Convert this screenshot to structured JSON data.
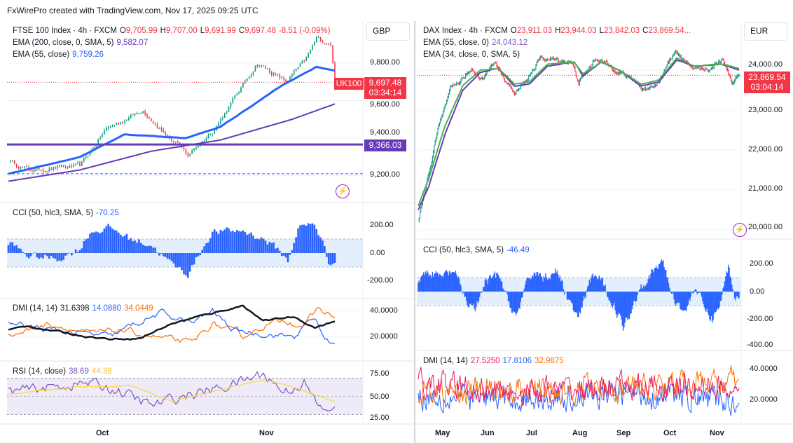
{
  "header": {
    "caption": "FxWirePro created with TradingView.com, Nov 17, 2025 09:25 UTC"
  },
  "colors": {
    "up": "#089981",
    "down": "#f23645",
    "ema_blue": "#2962ff",
    "ema_purple": "#673ab7",
    "ema_green": "#4caf50",
    "cci": "#2962ff",
    "adx": "#131722",
    "plus_di": "#2962ff",
    "minus_di": "#ff6d00",
    "dmi_red": "#e91e63",
    "rsi": "#7e57c2",
    "rsi_ma": "#fdd835"
  },
  "left": {
    "symbol": "FTSE 100 Index · 4h · FXCM",
    "o_label": "O",
    "o": "9,705.99",
    "h_label": "H",
    "h": "9,707.00",
    "l_label": "L",
    "l": "9,691.99",
    "c_label": "C",
    "c": "9,697.48",
    "change": "-8.51 (-0.09%)",
    "currency": "GBP",
    "ema1_label": "EMA (200, close, 0, SMA, 5)",
    "ema1_value": "9,582.07",
    "ema2_label": "EMA (55, close)",
    "ema2_value": "9,759.26",
    "symbol_tag": "UK100",
    "last_price": "9,697.48",
    "countdown": "03:34:14",
    "hline_price": "9,366.03",
    "price_ticks": [
      "9,800.00",
      "9,600.00",
      "9,400.00",
      "9,200.00"
    ],
    "cci_label": "CCI (50, hlc3, SMA, 5)",
    "cci_value": "-70.25",
    "cci_ticks": [
      "200.00",
      "0.00",
      "-200.00"
    ],
    "dmi_label": "DMI (14, 14)",
    "dmi_adx": "31.6398",
    "dmi_plus": "14.0880",
    "dmi_minus": "34.0449",
    "dmi_ticks": [
      "40.0000",
      "20.0000"
    ],
    "rsi_label": "RSI (14, close)",
    "rsi_value": "38.69",
    "rsi_ma": "44.38",
    "rsi_ticks": [
      "75.00",
      "50.00",
      "25.00"
    ],
    "time_ticks": [
      "Oct",
      "Nov"
    ]
  },
  "right": {
    "symbol": "DAX Index · 4h · FXCM",
    "o_label": "O",
    "o": "23,911.03",
    "h_label": "H",
    "h": "23,944.03",
    "l_label": "L",
    "l": "23,842.03",
    "c_label": "C",
    "c": "23,869.54...",
    "currency": "EUR",
    "ema1_label": "EMA (55, close, 0)",
    "ema1_value": "24,043.12",
    "ema2_label": "EMA (34, close, 0, SMA, 5)",
    "last_price": "23,869.54",
    "countdown": "03:04:14",
    "price_ticks": [
      "24,000.00",
      "23,000.00",
      "22,000.00",
      "21,000.00",
      "20,000.00"
    ],
    "cci_label": "CCI (50, hlc3, SMA, 5)",
    "cci_value": "-46.49",
    "cci_ticks": [
      "200.00",
      "0.00",
      "-200.00",
      "-400.00"
    ],
    "dmi_label": "DMI (14, 14)",
    "dmi_a": "27.5250",
    "dmi_b": "17.8106",
    "dmi_c": "32.9875",
    "dmi_ticks": [
      "40.0000",
      "20.0000"
    ],
    "time_ticks": [
      "May",
      "Jun",
      "Jul",
      "Aug",
      "Sep",
      "Oct",
      "Nov"
    ]
  },
  "chart_data": [
    {
      "type": "candlestick",
      "title": "FTSE 100 Index · 4h · FXCM",
      "bars": 160,
      "ylim": [
        9130,
        10000
      ],
      "close_keypoints": [
        [
          0,
          9280
        ],
        [
          10,
          9230
        ],
        [
          35,
          9250
        ],
        [
          48,
          9450
        ],
        [
          66,
          9550
        ],
        [
          77,
          9420
        ],
        [
          88,
          9310
        ],
        [
          101,
          9450
        ],
        [
          113,
          9650
        ],
        [
          122,
          9800
        ],
        [
          136,
          9700
        ],
        [
          146,
          9820
        ],
        [
          151,
          9930
        ],
        [
          158,
          9900
        ],
        [
          160,
          9697.48
        ]
      ],
      "ema55_keypoints": [
        [
          0,
          9210
        ],
        [
          35,
          9300
        ],
        [
          57,
          9420
        ],
        [
          87,
          9400
        ],
        [
          104,
          9460
        ],
        [
          134,
          9680
        ],
        [
          151,
          9780
        ],
        [
          160,
          9759.26
        ]
      ],
      "ema200_keypoints": [
        [
          0,
          9170
        ],
        [
          35,
          9230
        ],
        [
          70,
          9330
        ],
        [
          104,
          9390
        ],
        [
          139,
          9500
        ],
        [
          160,
          9582.07
        ]
      ],
      "hline": 9366.03,
      "dashed_line": 9210,
      "time_tick_bars": [
        46,
        126
      ]
    },
    {
      "type": "bar",
      "title": "CCI (50, hlc3, SMA, 5)",
      "band": [
        -100,
        100
      ],
      "ylim": [
        -260,
        300
      ],
      "keypoints": [
        [
          0,
          80
        ],
        [
          10,
          -20
        ],
        [
          25,
          -40
        ],
        [
          35,
          30
        ],
        [
          40,
          150
        ],
        [
          50,
          180
        ],
        [
          60,
          100
        ],
        [
          70,
          60
        ],
        [
          80,
          -80
        ],
        [
          88,
          -150
        ],
        [
          95,
          30
        ],
        [
          100,
          150
        ],
        [
          115,
          160
        ],
        [
          125,
          100
        ],
        [
          132,
          30
        ],
        [
          137,
          -60
        ],
        [
          142,
          180
        ],
        [
          150,
          210
        ],
        [
          154,
          80
        ],
        [
          157,
          -80
        ],
        [
          160,
          -70.25
        ]
      ]
    },
    {
      "type": "line",
      "title": "DMI (14, 14)",
      "ylim": [
        5,
        50
      ],
      "series": [
        {
          "name": "ADX",
          "keypoints": [
            [
              0,
              25
            ],
            [
              10,
              28
            ],
            [
              30,
              22
            ],
            [
              50,
              18
            ],
            [
              65,
              19
            ],
            [
              80,
              30
            ],
            [
              100,
              38
            ],
            [
              115,
              44
            ],
            [
              125,
              32
            ],
            [
              140,
              35
            ],
            [
              150,
              27
            ],
            [
              160,
              31.64
            ]
          ]
        },
        {
          "name": "+DI",
          "keypoints": [
            [
              0,
              30
            ],
            [
              20,
              25
            ],
            [
              50,
              20
            ],
            [
              60,
              28
            ],
            [
              75,
              38
            ],
            [
              90,
              30
            ],
            [
              100,
              40
            ],
            [
              110,
              25
            ],
            [
              125,
              22
            ],
            [
              140,
              20
            ],
            [
              150,
              35
            ],
            [
              155,
              18
            ],
            [
              160,
              14.09
            ]
          ]
        },
        {
          "name": "-DI",
          "keypoints": [
            [
              0,
              20
            ],
            [
              20,
              30
            ],
            [
              40,
              22
            ],
            [
              55,
              25
            ],
            [
              70,
              20
            ],
            [
              90,
              15
            ],
            [
              100,
              30
            ],
            [
              115,
              20
            ],
            [
              125,
              28
            ],
            [
              135,
              33
            ],
            [
              145,
              28
            ],
            [
              152,
              42
            ],
            [
              160,
              34.04
            ]
          ]
        }
      ]
    },
    {
      "type": "line",
      "title": "RSI (14, close)",
      "band": [
        30,
        70
      ],
      "ylim": [
        20,
        85
      ],
      "series": [
        {
          "name": "RSI",
          "keypoints": [
            [
              0,
              55
            ],
            [
              20,
              60
            ],
            [
              40,
              65
            ],
            [
              55,
              55
            ],
            [
              70,
              40
            ],
            [
              85,
              50
            ],
            [
              105,
              60
            ],
            [
              125,
              75
            ],
            [
              135,
              55
            ],
            [
              145,
              65
            ],
            [
              150,
              45
            ],
            [
              155,
              32
            ],
            [
              160,
              38.69
            ]
          ]
        },
        {
          "name": "RSI MA",
          "keypoints": [
            [
              0,
              52
            ],
            [
              30,
              60
            ],
            [
              60,
              62
            ],
            [
              80,
              45
            ],
            [
              100,
              55
            ],
            [
              125,
              68
            ],
            [
              140,
              60
            ],
            [
              150,
              52
            ],
            [
              160,
              44.38
            ]
          ]
        }
      ]
    },
    {
      "type": "candlestick",
      "title": "DAX Index · 4h · FXCM",
      "bars": 360,
      "ylim": [
        19800,
        24900
      ],
      "close_keypoints": [
        [
          0,
          20200
        ],
        [
          8,
          21000
        ],
        [
          22,
          22500
        ],
        [
          36,
          23500
        ],
        [
          60,
          24000
        ],
        [
          72,
          23800
        ],
        [
          86,
          24200
        ],
        [
          108,
          23400
        ],
        [
          120,
          23700
        ],
        [
          137,
          24300
        ],
        [
          172,
          24200
        ],
        [
          180,
          23700
        ],
        [
          200,
          24300
        ],
        [
          222,
          24000
        ],
        [
          245,
          23700
        ],
        [
          252,
          23500
        ],
        [
          270,
          23700
        ],
        [
          288,
          24500
        ],
        [
          302,
          24100
        ],
        [
          325,
          24000
        ],
        [
          342,
          24300
        ],
        [
          352,
          23700
        ],
        [
          360,
          23869.54
        ]
      ],
      "ema55_keypoints": [
        [
          0,
          20600
        ],
        [
          12,
          21300
        ],
        [
          30,
          22600
        ],
        [
          50,
          23600
        ],
        [
          70,
          24000
        ],
        [
          90,
          24050
        ],
        [
          108,
          23650
        ],
        [
          125,
          23700
        ],
        [
          145,
          24150
        ],
        [
          175,
          24200
        ],
        [
          185,
          23900
        ],
        [
          205,
          24200
        ],
        [
          225,
          24000
        ],
        [
          250,
          23650
        ],
        [
          270,
          23750
        ],
        [
          290,
          24300
        ],
        [
          310,
          24100
        ],
        [
          340,
          24150
        ],
        [
          360,
          24043.12
        ]
      ],
      "ema34_keypoints": [
        [
          0,
          20500
        ],
        [
          12,
          21100
        ],
        [
          30,
          22400
        ],
        [
          50,
          23500
        ],
        [
          70,
          23950
        ],
        [
          90,
          24050
        ],
        [
          108,
          23600
        ],
        [
          125,
          23650
        ],
        [
          145,
          24100
        ],
        [
          175,
          24200
        ],
        [
          185,
          23850
        ],
        [
          205,
          24200
        ],
        [
          225,
          24000
        ],
        [
          250,
          23600
        ],
        [
          270,
          23700
        ],
        [
          290,
          24250
        ],
        [
          310,
          24100
        ],
        [
          340,
          24150
        ],
        [
          360,
          24000
        ]
      ],
      "time_tick_bars": [
        27,
        78,
        128,
        182,
        230,
        283,
        335
      ]
    },
    {
      "type": "bar",
      "title": "CCI (50, hlc3, SMA, 5)",
      "band": [
        -100,
        100
      ],
      "ylim": [
        -420,
        300
      ],
      "keypoints": [
        [
          0,
          60
        ],
        [
          10,
          150
        ],
        [
          25,
          100
        ],
        [
          40,
          150
        ],
        [
          55,
          -80
        ],
        [
          65,
          -120
        ],
        [
          75,
          60
        ],
        [
          90,
          120
        ],
        [
          100,
          -50
        ],
        [
          110,
          -180
        ],
        [
          120,
          20
        ],
        [
          130,
          150
        ],
        [
          140,
          100
        ],
        [
          155,
          150
        ],
        [
          170,
          -80
        ],
        [
          180,
          -200
        ],
        [
          195,
          120
        ],
        [
          205,
          80
        ],
        [
          220,
          -100
        ],
        [
          230,
          -250
        ],
        [
          240,
          -120
        ],
        [
          250,
          50
        ],
        [
          265,
          150
        ],
        [
          275,
          220
        ],
        [
          285,
          -30
        ],
        [
          300,
          -150
        ],
        [
          310,
          40
        ],
        [
          320,
          -100
        ],
        [
          330,
          -200
        ],
        [
          340,
          -60
        ],
        [
          348,
          180
        ],
        [
          355,
          -30
        ],
        [
          360,
          -46.49
        ]
      ]
    },
    {
      "type": "line",
      "title": "DMI (14, 14)",
      "ylim": [
        5,
        50
      ],
      "series": [
        {
          "name": "ADX",
          "keypoints": [
            [
              0,
              30
            ],
            [
              120,
              25
            ],
            [
              240,
              28
            ],
            [
              360,
              27.53
            ]
          ]
        },
        {
          "name": "+DI",
          "keypoints": [
            [
              0,
              22
            ],
            [
              120,
              20
            ],
            [
              240,
              24
            ],
            [
              360,
              17.81
            ]
          ]
        },
        {
          "name": "-DI",
          "keypoints": [
            [
              0,
              25
            ],
            [
              120,
              26
            ],
            [
              240,
              28
            ],
            [
              360,
              32.99
            ]
          ]
        }
      ]
    }
  ]
}
